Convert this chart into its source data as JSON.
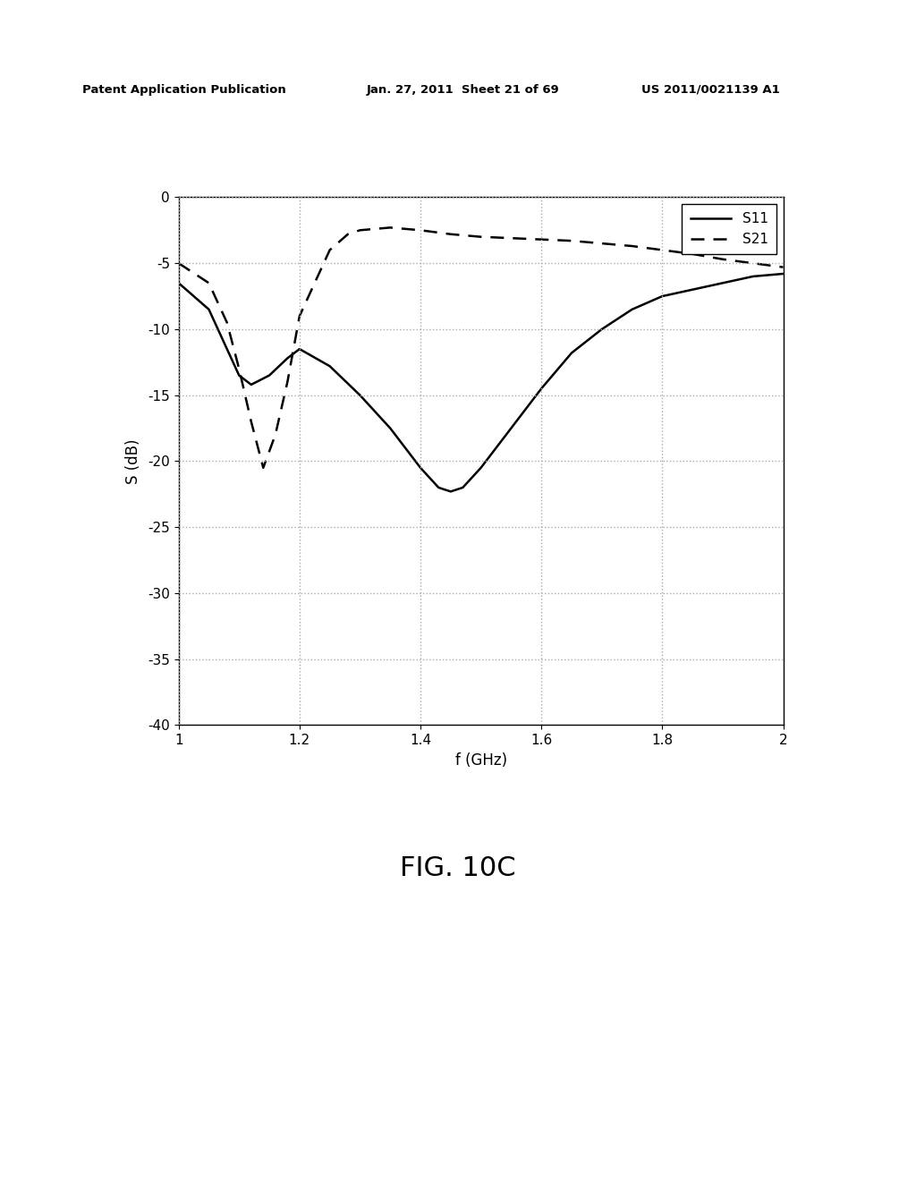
{
  "title": "FIG. 10C",
  "xlabel": "f (GHz)",
  "ylabel": "S (dB)",
  "xlim": [
    1,
    2
  ],
  "ylim": [
    -40,
    0
  ],
  "xticks": [
    1,
    1.2,
    1.4,
    1.6,
    1.8,
    2
  ],
  "yticks": [
    0,
    -5,
    -10,
    -15,
    -20,
    -25,
    -30,
    -35,
    -40
  ],
  "grid_color": "#aaaaaa",
  "background_color": "#ffffff",
  "line_color": "#000000",
  "legend_labels": [
    "S11",
    "S21"
  ],
  "header_left": "Patent Application Publication",
  "header_mid": "Jan. 27, 2011  Sheet 21 of 69",
  "header_right": "US 2011/0021139 A1",
  "S11_x": [
    1.0,
    1.05,
    1.08,
    1.1,
    1.12,
    1.15,
    1.18,
    1.2,
    1.25,
    1.3,
    1.35,
    1.4,
    1.43,
    1.45,
    1.47,
    1.5,
    1.55,
    1.6,
    1.65,
    1.7,
    1.75,
    1.8,
    1.85,
    1.9,
    1.95,
    2.0
  ],
  "S11_y": [
    -6.5,
    -8.5,
    -11.5,
    -13.5,
    -14.2,
    -13.5,
    -12.2,
    -11.5,
    -12.8,
    -15.0,
    -17.5,
    -20.5,
    -22.0,
    -22.3,
    -22.0,
    -20.5,
    -17.5,
    -14.5,
    -11.8,
    -10.0,
    -8.5,
    -7.5,
    -7.0,
    -6.5,
    -6.0,
    -5.8
  ],
  "S21_x": [
    1.0,
    1.05,
    1.08,
    1.1,
    1.12,
    1.14,
    1.16,
    1.18,
    1.2,
    1.25,
    1.28,
    1.3,
    1.35,
    1.4,
    1.45,
    1.5,
    1.55,
    1.6,
    1.65,
    1.7,
    1.75,
    1.8,
    1.85,
    1.9,
    1.95,
    2.0
  ],
  "S21_y": [
    -5.0,
    -6.5,
    -9.5,
    -13.0,
    -17.0,
    -20.5,
    -18.0,
    -14.0,
    -9.0,
    -4.0,
    -2.8,
    -2.5,
    -2.3,
    -2.5,
    -2.8,
    -3.0,
    -3.1,
    -3.2,
    -3.3,
    -3.5,
    -3.7,
    -4.0,
    -4.3,
    -4.7,
    -5.0,
    -5.3
  ]
}
